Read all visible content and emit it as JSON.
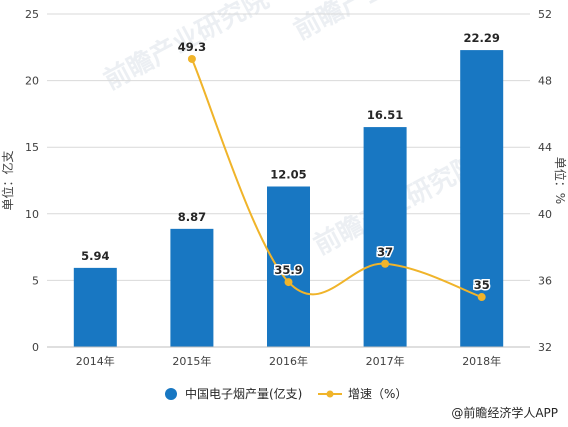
{
  "chart_data": {
    "type": "bar+line",
    "categories": [
      "2014年",
      "2015年",
      "2016年",
      "2017年",
      "2018年"
    ],
    "series": [
      {
        "name": "中国电子烟产量(亿支)",
        "type": "bar",
        "axis": "left",
        "values": [
          5.94,
          8.87,
          12.05,
          16.51,
          22.29
        ],
        "labels": [
          "5.94",
          "8.87",
          "12.05",
          "16.51",
          "22.29"
        ],
        "color": "#1877c2"
      },
      {
        "name": "增速（%）",
        "type": "line",
        "axis": "right",
        "values": [
          null,
          49.3,
          35.9,
          37,
          35
        ],
        "labels": [
          "",
          "49.3",
          "35.9",
          "37",
          "35"
        ],
        "color": "#f0b42a"
      }
    ],
    "ylabel": "单位：亿支",
    "y2label": "单位：%",
    "ylim": [
      0,
      25
    ],
    "y2lim": [
      32,
      52
    ],
    "yticks": [
      "0",
      "5",
      "10",
      "15",
      "20",
      "25"
    ],
    "y2ticks": [
      "32",
      "36",
      "40",
      "44",
      "48",
      "52"
    ],
    "grid": true,
    "legend_position": "bottom"
  },
  "watermark": "前瞻产业研究院",
  "credit": "@前瞻经济学人APP"
}
